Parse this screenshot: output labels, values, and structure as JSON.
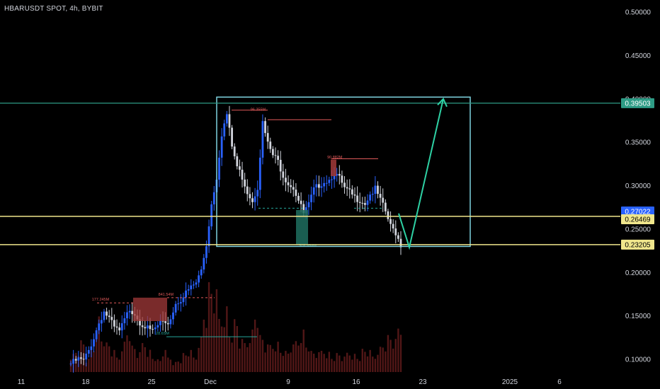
{
  "header": {
    "symbol_title": "HBARUSDT SPOT, 4h, BYBIT"
  },
  "colors": {
    "background": "#000000",
    "candle_up": "#2962ff",
    "candle_down": "#d1d4dc",
    "volume": "#5b1a1a",
    "box": "#7ed3e0",
    "price_level": "#2e9c86",
    "support": "#f0e68c",
    "projection": "#2ed1a4",
    "annotation_red": "#e05a5a",
    "annotation_teal": "#26a69a",
    "axis_text": "#d1d4dc"
  },
  "chart_data": {
    "type": "candlestick",
    "title": "HBARUSDT SPOT, 4h, BYBIT",
    "x_ticks": [
      "11",
      "18",
      "25",
      "Dec",
      "9",
      "16",
      "23",
      "2025",
      "6"
    ],
    "y_ticks": [
      "0.50000",
      "0.45000",
      "0.40000",
      "0.35000",
      "0.30000",
      "0.25000",
      "0.20000",
      "0.15000",
      "0.10000"
    ],
    "ylim": [
      0.095,
      0.51
    ],
    "price_path": [
      [
        0,
        0.095
      ],
      [
        3,
        0.1
      ],
      [
        5,
        0.098
      ],
      [
        7,
        0.11
      ],
      [
        9,
        0.125
      ],
      [
        11,
        0.142
      ],
      [
        13,
        0.155
      ],
      [
        15,
        0.147
      ],
      [
        17,
        0.136
      ],
      [
        19,
        0.132
      ],
      [
        21,
        0.145
      ],
      [
        23,
        0.158
      ],
      [
        25,
        0.153
      ],
      [
        27,
        0.143
      ],
      [
        29,
        0.138
      ],
      [
        31,
        0.132
      ],
      [
        33,
        0.135
      ],
      [
        35,
        0.142
      ],
      [
        37,
        0.138
      ],
      [
        39,
        0.147
      ],
      [
        41,
        0.164
      ],
      [
        43,
        0.169
      ],
      [
        45,
        0.176
      ],
      [
        47,
        0.183
      ],
      [
        49,
        0.188
      ],
      [
        51,
        0.203
      ],
      [
        53,
        0.232
      ],
      [
        55,
        0.279
      ],
      [
        57,
        0.31
      ],
      [
        59,
        0.36
      ],
      [
        61,
        0.382
      ],
      [
        63,
        0.345
      ],
      [
        65,
        0.322
      ],
      [
        67,
        0.31
      ],
      [
        69,
        0.293
      ],
      [
        71,
        0.283
      ],
      [
        73,
        0.299
      ],
      [
        75,
        0.372
      ],
      [
        77,
        0.348
      ],
      [
        79,
        0.335
      ],
      [
        81,
        0.328
      ],
      [
        83,
        0.312
      ],
      [
        85,
        0.303
      ],
      [
        87,
        0.298
      ],
      [
        89,
        0.283
      ],
      [
        91,
        0.268
      ],
      [
        93,
        0.278
      ],
      [
        95,
        0.295
      ],
      [
        97,
        0.301
      ],
      [
        99,
        0.305
      ],
      [
        101,
        0.307
      ],
      [
        103,
        0.315
      ],
      [
        105,
        0.308
      ],
      [
        107,
        0.296
      ],
      [
        109,
        0.292
      ],
      [
        111,
        0.286
      ],
      [
        113,
        0.284
      ],
      [
        115,
        0.28
      ],
      [
        117,
        0.29
      ],
      [
        119,
        0.296
      ],
      [
        121,
        0.283
      ],
      [
        123,
        0.27
      ],
      [
        125,
        0.253
      ],
      [
        127,
        0.246
      ],
      [
        129,
        0.232
      ]
    ],
    "volume_profile": [
      0.18,
      0.22,
      0.3,
      0.12,
      0.25,
      0.55,
      0.35,
      0.28,
      0.2,
      0.15,
      0.3,
      0.42,
      0.25,
      0.18,
      0.3,
      0.22,
      0.15,
      0.12,
      0.2,
      0.15,
      0.1,
      0.12,
      0.18,
      0.2,
      0.15,
      0.35,
      0.6,
      0.85,
      0.75,
      0.55,
      0.65,
      0.4,
      0.5,
      0.3,
      0.3,
      0.42,
      0.6,
      0.35,
      0.25,
      0.28,
      0.3,
      0.22,
      0.2,
      0.25,
      0.32,
      0.42,
      0.28,
      0.2,
      0.18,
      0.22,
      0.2,
      0.15,
      0.18,
      0.14,
      0.2,
      0.18,
      0.15,
      0.22,
      0.2,
      0.16,
      0.25,
      0.28,
      0.35,
      0.3,
      0.45
    ],
    "levels": [
      {
        "label": "0.39503",
        "value": 0.39503,
        "color": "#2e9c86",
        "text_color": "#ffffff"
      },
      {
        "label": "0.27022",
        "value": 0.27022,
        "color": "#2962ff",
        "text_color": "#ffffff"
      },
      {
        "label": "0.26469",
        "value": 0.26469,
        "color": "#f0e68c",
        "text_color": "#000000"
      },
      {
        "label": "0.23205",
        "value": 0.23205,
        "color": "#f0e68c",
        "text_color": "#000000"
      }
    ],
    "annotations": [
      {
        "text": "96.355M",
        "price": 0.384,
        "idx": 73,
        "color": "#e05a5a"
      },
      {
        "text": "90.882M",
        "price": 0.329,
        "idx": 103,
        "color": "#e05a5a"
      },
      {
        "text": "177.245M",
        "price": 0.165,
        "idx": 11,
        "color": "#e05a5a"
      },
      {
        "text": "841.54M",
        "price": 0.171,
        "idx": 37,
        "color": "#e05a5a"
      },
      {
        "text": "28.6SM",
        "price": 0.126,
        "idx": 36,
        "color": "#26a69a"
      },
      {
        "text": "506.484M",
        "price": 0.227,
        "idx": 92,
        "color": "#26a69a"
      }
    ]
  }
}
